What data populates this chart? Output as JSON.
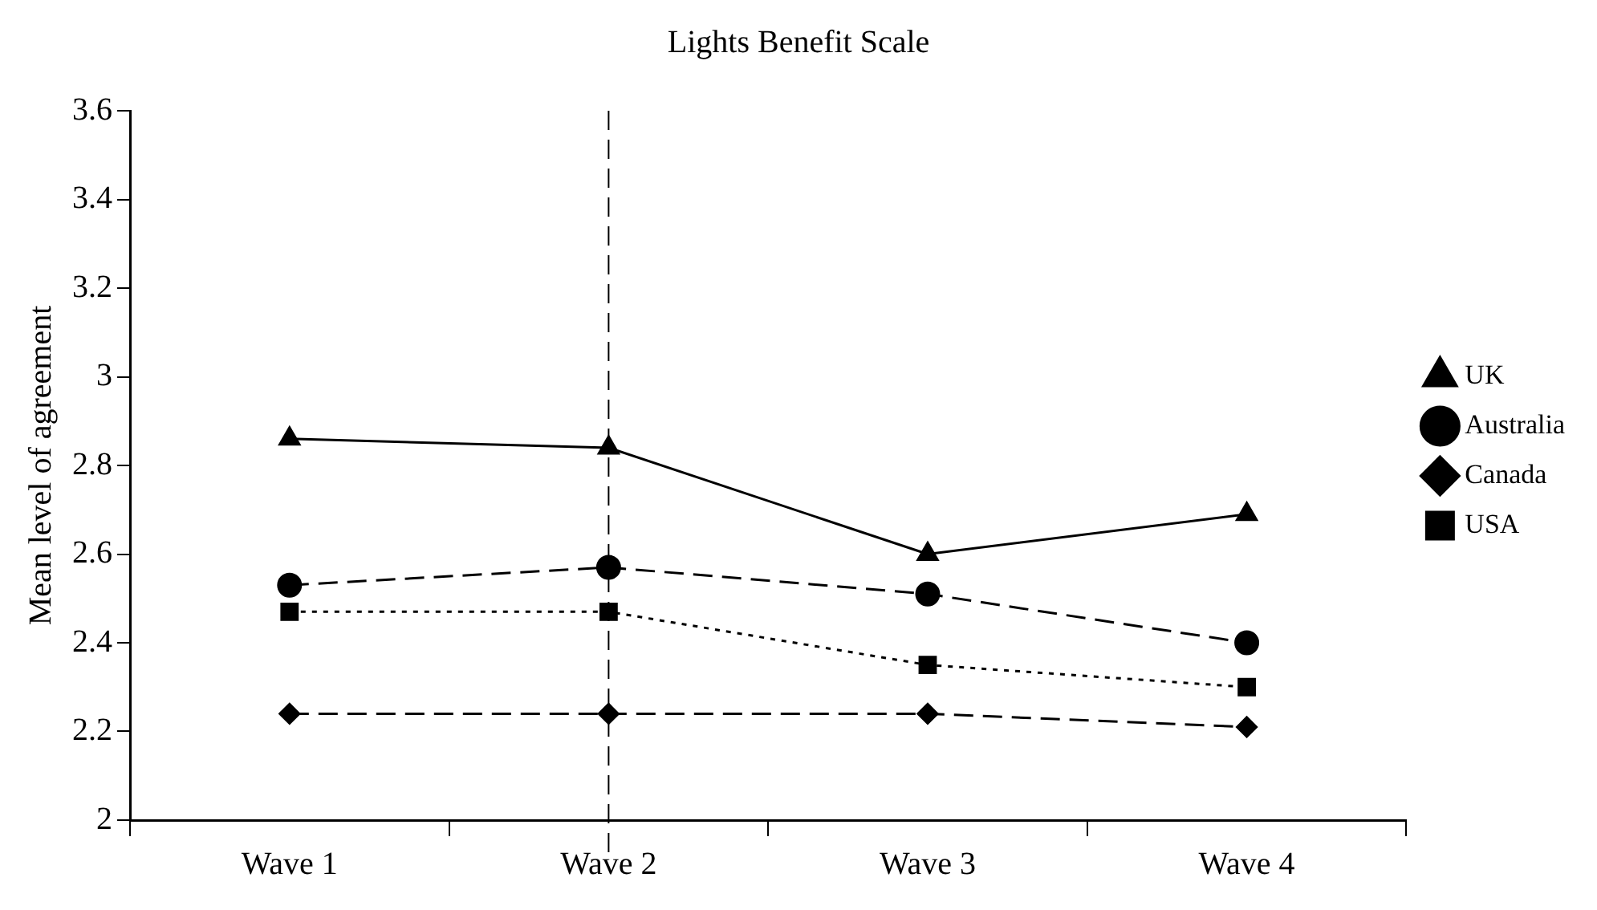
{
  "chart_data": {
    "type": "line",
    "title": "Lights Benefit Scale",
    "ylabel": "Mean level of agreement",
    "categories": [
      "Wave 1",
      "Wave 2",
      "Wave 3",
      "Wave 4"
    ],
    "series": [
      {
        "name": "UK",
        "color": "#000000",
        "values": [
          2.86,
          2.84,
          2.6,
          2.69
        ],
        "marker": "triangle",
        "line_style": "solid"
      },
      {
        "name": "Australia",
        "color": "#000000",
        "values": [
          2.53,
          2.57,
          2.51,
          2.4
        ],
        "marker": "circle",
        "line_style": "dashed"
      },
      {
        "name": "Canada",
        "color": "#000000",
        "values": [
          2.24,
          2.24,
          2.24,
          2.21
        ],
        "marker": "diamond",
        "line_style": "dashed"
      },
      {
        "name": "USA",
        "color": "#000000",
        "values": [
          2.47,
          2.47,
          2.35,
          2.3
        ],
        "marker": "square",
        "line_style": "dotted"
      }
    ],
    "ylim": [
      2,
      3.6
    ],
    "yticks": [
      2,
      2.2,
      2.4,
      2.6,
      2.8,
      3,
      3.2,
      3.4,
      3.6
    ],
    "ref_lines": [
      {
        "axis": "x",
        "value": "Wave 2",
        "line_style": "dashed",
        "color": "#000000"
      }
    ],
    "grid": false,
    "legend": "right"
  }
}
